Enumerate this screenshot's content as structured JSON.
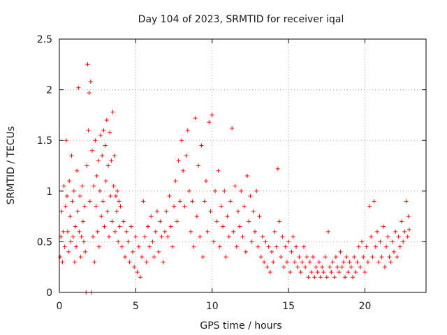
{
  "chart_data": {
    "type": "scatter",
    "title": "Day 104 of 2023, SRMTID for receiver iqal",
    "xlabel": "GPS time / hours",
    "ylabel": "SRMTID / TECUs",
    "xlim": [
      0,
      24
    ],
    "ylim": [
      0,
      2.5
    ],
    "xticks": [
      0,
      5,
      10,
      15,
      20
    ],
    "yticks": [
      0,
      0.5,
      1,
      1.5,
      2,
      2.5
    ],
    "xtick_labels": [
      "0",
      "5",
      "10",
      "15",
      "20"
    ],
    "ytick_labels": [
      "0",
      "0.5",
      "1",
      "1.5",
      "2",
      "2.5"
    ],
    "grid": true,
    "marker": "plus",
    "color": "#ff0000",
    "series": [
      {
        "name": "SRMTID",
        "points": [
          [
            0.05,
            0.35
          ],
          [
            0.1,
            0.55
          ],
          [
            0.15,
            0.8
          ],
          [
            0.2,
            0.3
          ],
          [
            0.25,
            0.6
          ],
          [
            0.3,
            1.05
          ],
          [
            0.35,
            0.45
          ],
          [
            0.4,
            0.85
          ],
          [
            0.45,
            1.5
          ],
          [
            0.5,
            0.95
          ],
          [
            0.55,
            0.6
          ],
          [
            0.6,
            0.4
          ],
          [
            0.65,
            1.1
          ],
          [
            0.7,
            0.75
          ],
          [
            0.75,
            0.5
          ],
          [
            0.8,
            1.35
          ],
          [
            0.85,
            0.9
          ],
          [
            0.9,
            0.55
          ],
          [
            0.95,
            1.0
          ],
          [
            1.0,
            0.3
          ],
          [
            1.05,
            0.65
          ],
          [
            1.1,
            0.45
          ],
          [
            1.15,
            1.2
          ],
          [
            1.2,
            0.8
          ],
          [
            1.25,
            2.02
          ],
          [
            1.3,
            0.6
          ],
          [
            1.35,
            0.95
          ],
          [
            1.4,
            0.35
          ],
          [
            1.45,
            0.55
          ],
          [
            1.5,
            1.05
          ],
          [
            1.55,
            0.7
          ],
          [
            1.6,
            0.5
          ],
          [
            1.65,
            0.85
          ],
          [
            1.7,
            0.4
          ],
          [
            1.75,
            0.0
          ],
          [
            1.8,
            1.25
          ],
          [
            1.85,
            2.25
          ],
          [
            1.9,
            1.6
          ],
          [
            1.95,
            1.97
          ],
          [
            2.0,
            0.9
          ],
          [
            2.05,
            2.08
          ],
          [
            2.1,
            0.0
          ],
          [
            2.15,
            1.4
          ],
          [
            2.2,
            0.55
          ],
          [
            2.25,
            1.05
          ],
          [
            2.3,
            0.3
          ],
          [
            2.35,
            1.5
          ],
          [
            2.4,
            0.85
          ],
          [
            2.45,
            1.15
          ],
          [
            2.5,
            0.6
          ],
          [
            2.55,
            1.3
          ],
          [
            2.6,
            0.45
          ],
          [
            2.65,
            1.0
          ],
          [
            2.7,
            1.55
          ],
          [
            2.75,
            0.75
          ],
          [
            2.8,
            1.35
          ],
          [
            2.85,
            0.9
          ],
          [
            2.9,
            1.6
          ],
          [
            2.95,
            0.65
          ],
          [
            3.0,
            1.45
          ],
          [
            3.05,
            1.1
          ],
          [
            3.1,
            1.7
          ],
          [
            3.15,
            0.8
          ],
          [
            3.2,
            1.25
          ],
          [
            3.25,
            0.55
          ],
          [
            3.3,
            1.58
          ],
          [
            3.35,
            0.95
          ],
          [
            3.4,
            1.3
          ],
          [
            3.45,
            0.7
          ],
          [
            3.5,
            1.78
          ],
          [
            3.55,
            1.05
          ],
          [
            3.6,
            1.35
          ],
          [
            3.65,
            0.6
          ],
          [
            3.7,
            0.95
          ],
          [
            3.75,
            0.8
          ],
          [
            3.8,
            1.0
          ],
          [
            3.85,
            0.5
          ],
          [
            3.9,
            0.9
          ],
          [
            3.95,
            0.65
          ],
          [
            4.0,
            0.85
          ],
          [
            4.1,
            0.45
          ],
          [
            4.2,
            0.7
          ],
          [
            4.3,
            0.35
          ],
          [
            4.4,
            0.6
          ],
          [
            4.5,
            0.5
          ],
          [
            4.6,
            0.3
          ],
          [
            4.7,
            0.65
          ],
          [
            4.8,
            0.4
          ],
          [
            4.9,
            0.25
          ],
          [
            5.0,
            0.55
          ],
          [
            5.1,
            0.2
          ],
          [
            5.2,
            0.45
          ],
          [
            5.3,
            0.15
          ],
          [
            5.4,
            0.35
          ],
          [
            5.5,
            0.9
          ],
          [
            5.6,
            0.55
          ],
          [
            5.7,
            0.3
          ],
          [
            5.8,
            0.65
          ],
          [
            5.9,
            0.45
          ],
          [
            6.0,
            0.75
          ],
          [
            6.1,
            0.5
          ],
          [
            6.2,
            0.35
          ],
          [
            6.3,
            0.6
          ],
          [
            6.4,
            0.8
          ],
          [
            6.5,
            0.4
          ],
          [
            6.6,
            0.7
          ],
          [
            6.7,
            0.55
          ],
          [
            6.8,
            0.3
          ],
          [
            6.9,
            0.6
          ],
          [
            7.0,
            0.8
          ],
          [
            7.1,
            0.55
          ],
          [
            7.2,
            0.95
          ],
          [
            7.3,
            0.65
          ],
          [
            7.4,
            0.45
          ],
          [
            7.5,
            0.85
          ],
          [
            7.6,
            1.1
          ],
          [
            7.7,
            0.7
          ],
          [
            7.8,
            1.3
          ],
          [
            7.9,
            0.9
          ],
          [
            8.0,
            1.5
          ],
          [
            8.1,
            1.2
          ],
          [
            8.2,
            0.85
          ],
          [
            8.3,
            1.35
          ],
          [
            8.4,
            1.6
          ],
          [
            8.5,
            1.0
          ],
          [
            8.6,
            0.6
          ],
          [
            8.7,
            0.9
          ],
          [
            8.8,
            0.45
          ],
          [
            8.9,
            1.72
          ],
          [
            9.0,
            0.75
          ],
          [
            9.1,
            1.25
          ],
          [
            9.2,
            0.55
          ],
          [
            9.3,
            1.45
          ],
          [
            9.4,
            0.35
          ],
          [
            9.5,
            0.9
          ],
          [
            9.6,
            1.1
          ],
          [
            9.7,
            0.6
          ],
          [
            9.8,
            1.68
          ],
          [
            9.9,
            0.8
          ],
          [
            10.0,
            1.75
          ],
          [
            10.1,
            0.5
          ],
          [
            10.2,
            1.0
          ],
          [
            10.3,
            0.7
          ],
          [
            10.4,
            1.2
          ],
          [
            10.5,
            0.45
          ],
          [
            10.6,
            0.85
          ],
          [
            10.7,
            0.65
          ],
          [
            10.8,
            1.0
          ],
          [
            10.9,
            0.35
          ],
          [
            11.0,
            0.75
          ],
          [
            11.1,
            0.55
          ],
          [
            11.2,
            0.9
          ],
          [
            11.3,
            1.62
          ],
          [
            11.4,
            0.6
          ],
          [
            11.5,
            1.05
          ],
          [
            11.6,
            0.45
          ],
          [
            11.7,
            0.8
          ],
          [
            11.8,
            0.65
          ],
          [
            11.9,
            1.0
          ],
          [
            12.0,
            0.55
          ],
          [
            12.1,
            0.85
          ],
          [
            12.2,
            0.4
          ],
          [
            12.3,
            1.15
          ],
          [
            12.4,
            0.7
          ],
          [
            12.5,
            0.95
          ],
          [
            12.6,
            0.5
          ],
          [
            12.7,
            0.8
          ],
          [
            12.8,
            0.6
          ],
          [
            12.9,
            1.0
          ],
          [
            13.0,
            0.45
          ],
          [
            13.1,
            0.75
          ],
          [
            13.2,
            0.35
          ],
          [
            13.3,
            0.55
          ],
          [
            13.4,
            0.3
          ],
          [
            13.5,
            0.5
          ],
          [
            13.6,
            0.25
          ],
          [
            13.7,
            0.45
          ],
          [
            13.8,
            0.2
          ],
          [
            13.9,
            0.4
          ],
          [
            14.0,
            0.3
          ],
          [
            14.1,
            0.6
          ],
          [
            14.2,
            0.45
          ],
          [
            14.3,
            1.22
          ],
          [
            14.4,
            0.7
          ],
          [
            14.5,
            0.35
          ],
          [
            14.6,
            0.55
          ],
          [
            14.7,
            0.25
          ],
          [
            14.8,
            0.45
          ],
          [
            14.9,
            0.3
          ],
          [
            15.0,
            0.5
          ],
          [
            15.1,
            0.2
          ],
          [
            15.2,
            0.4
          ],
          [
            15.3,
            0.55
          ],
          [
            15.4,
            0.3
          ],
          [
            15.5,
            0.45
          ],
          [
            15.6,
            0.25
          ],
          [
            15.7,
            0.35
          ],
          [
            15.8,
            0.2
          ],
          [
            15.9,
            0.3
          ],
          [
            16.0,
            0.45
          ],
          [
            16.1,
            0.25
          ],
          [
            16.2,
            0.35
          ],
          [
            16.3,
            0.15
          ],
          [
            16.4,
            0.3
          ],
          [
            16.5,
            0.2
          ],
          [
            16.6,
            0.35
          ],
          [
            16.7,
            0.15
          ],
          [
            16.8,
            0.25
          ],
          [
            16.9,
            0.2
          ],
          [
            17.0,
            0.3
          ],
          [
            17.1,
            0.15
          ],
          [
            17.2,
            0.25
          ],
          [
            17.3,
            0.2
          ],
          [
            17.4,
            0.35
          ],
          [
            17.5,
            0.15
          ],
          [
            17.6,
            0.6
          ],
          [
            17.7,
            0.25
          ],
          [
            17.8,
            0.2
          ],
          [
            17.9,
            0.3
          ],
          [
            18.0,
            0.15
          ],
          [
            18.1,
            0.35
          ],
          [
            18.2,
            0.25
          ],
          [
            18.3,
            0.2
          ],
          [
            18.4,
            0.4
          ],
          [
            18.5,
            0.25
          ],
          [
            18.6,
            0.3
          ],
          [
            18.7,
            0.15
          ],
          [
            18.8,
            0.35
          ],
          [
            18.9,
            0.2
          ],
          [
            19.0,
            0.3
          ],
          [
            19.1,
            0.25
          ],
          [
            19.2,
            0.15
          ],
          [
            19.3,
            0.35
          ],
          [
            19.4,
            0.2
          ],
          [
            19.5,
            0.3
          ],
          [
            19.6,
            0.45
          ],
          [
            19.7,
            0.25
          ],
          [
            19.8,
            0.5
          ],
          [
            19.9,
            0.35
          ],
          [
            20.0,
            0.2
          ],
          [
            20.1,
            0.45
          ],
          [
            20.2,
            0.3
          ],
          [
            20.3,
            0.85
          ],
          [
            20.4,
            0.55
          ],
          [
            20.5,
            0.35
          ],
          [
            20.6,
            0.9
          ],
          [
            20.7,
            0.45
          ],
          [
            20.8,
            0.6
          ],
          [
            20.9,
            0.3
          ],
          [
            21.0,
            0.5
          ],
          [
            21.1,
            0.35
          ],
          [
            21.2,
            0.65
          ],
          [
            21.3,
            0.25
          ],
          [
            21.4,
            0.45
          ],
          [
            21.5,
            0.55
          ],
          [
            21.6,
            0.35
          ],
          [
            21.7,
            0.3
          ],
          [
            21.8,
            0.5
          ],
          [
            21.9,
            0.4
          ],
          [
            22.0,
            0.6
          ],
          [
            22.1,
            0.35
          ],
          [
            22.2,
            0.55
          ],
          [
            22.3,
            0.45
          ],
          [
            22.4,
            0.7
          ],
          [
            22.5,
            0.5
          ],
          [
            22.6,
            0.6
          ],
          [
            22.7,
            0.9
          ],
          [
            22.8,
            0.55
          ],
          [
            22.85,
            0.75
          ],
          [
            22.9,
            0.62
          ]
        ]
      }
    ]
  }
}
